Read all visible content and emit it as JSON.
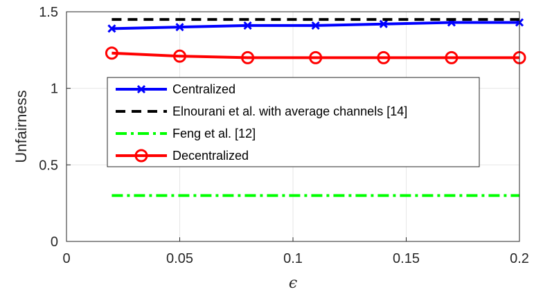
{
  "chart_data": {
    "type": "line",
    "title": "",
    "xlabel": "ϵ",
    "ylabel": "Unfairness",
    "xlim": [
      0,
      0.2
    ],
    "ylim": [
      0,
      1.5
    ],
    "xticks": [
      0,
      0.05,
      0.1,
      0.15,
      0.2
    ],
    "xtick_labels": [
      "0",
      "0.05",
      "0.1",
      "0.15",
      "0.2"
    ],
    "yticks": [
      0,
      0.5,
      1,
      1.5
    ],
    "ytick_labels": [
      "0",
      "0.5",
      "1",
      "1.5"
    ],
    "grid": true,
    "legend_position": "center-left",
    "x": [
      0.02,
      0.05,
      0.08,
      0.11,
      0.14,
      0.17,
      0.2
    ],
    "series": [
      {
        "name": "Centralized",
        "color": "#0000ff",
        "line_style": "solid",
        "marker": "x",
        "values": [
          1.39,
          1.4,
          1.41,
          1.41,
          1.42,
          1.43,
          1.43
        ]
      },
      {
        "name": "Elnourani et al. with average channels [14]",
        "color": "#000000",
        "line_style": "dashed",
        "marker": "none",
        "values": [
          1.45,
          1.45,
          1.45,
          1.45,
          1.45,
          1.45,
          1.45
        ]
      },
      {
        "name": "Feng et al. [12]",
        "color": "#00ff00",
        "line_style": "dashdot",
        "marker": "none",
        "values": [
          0.3,
          0.3,
          0.3,
          0.3,
          0.3,
          0.3,
          0.3
        ]
      },
      {
        "name": "Decentralized",
        "color": "#ff0000",
        "line_style": "solid",
        "marker": "circle",
        "values": [
          1.23,
          1.21,
          1.2,
          1.2,
          1.2,
          1.2,
          1.2
        ]
      }
    ]
  }
}
